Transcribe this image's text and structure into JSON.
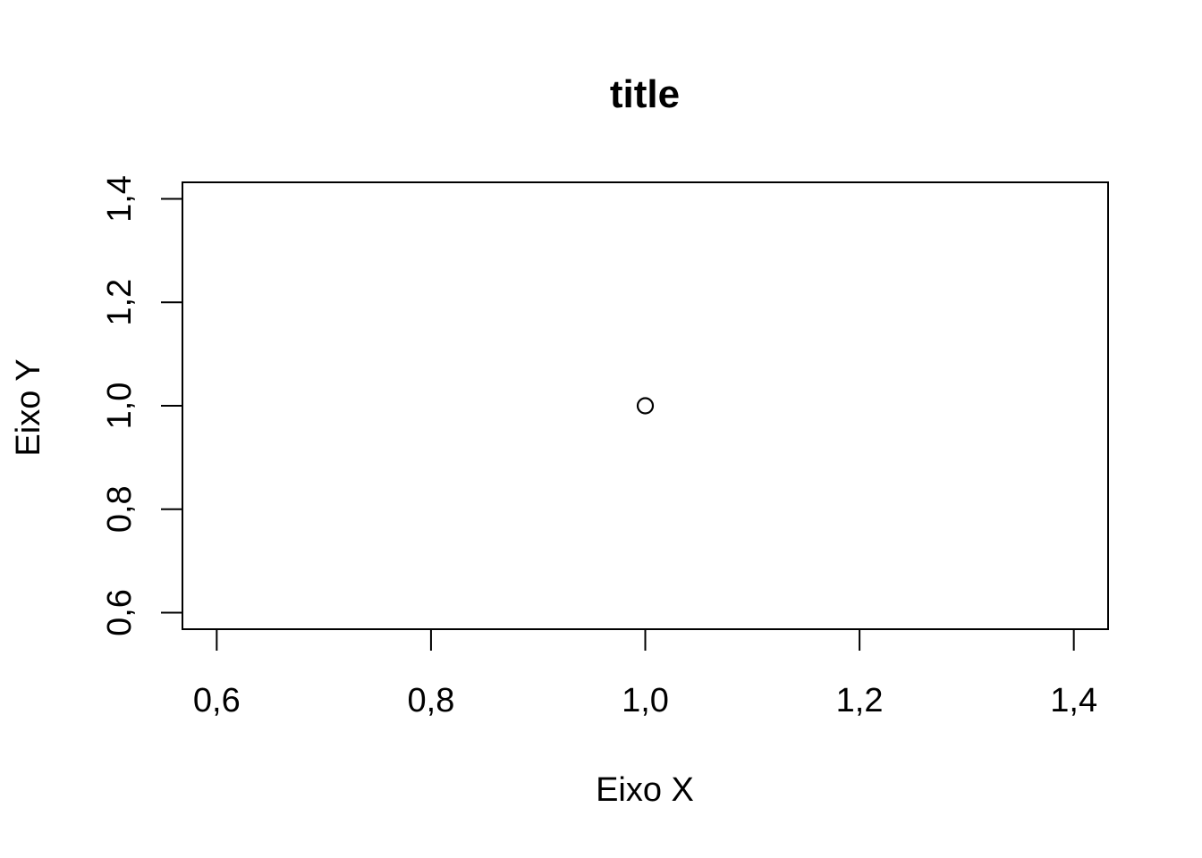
{
  "chart_data": {
    "type": "scatter",
    "title": "title",
    "xlabel": "Eixo X",
    "ylabel": "Eixo Y",
    "xlim": [
      0.568,
      1.432
    ],
    "ylim": [
      0.568,
      1.432
    ],
    "x_ticks": [
      0.6,
      0.8,
      1.0,
      1.2,
      1.4
    ],
    "x_tick_labels": [
      "0,6",
      "0,8",
      "1,0",
      "1,2",
      "1,4"
    ],
    "y_ticks": [
      0.6,
      0.8,
      1.0,
      1.2,
      1.4
    ],
    "y_tick_labels": [
      "0,6",
      "0,8",
      "1,0",
      "1,2",
      "1,4"
    ],
    "series": [
      {
        "x": [
          1.0
        ],
        "y": [
          1.0
        ]
      }
    ],
    "grid": false,
    "legend": "none",
    "colors": {
      "axis": "#000000",
      "point": "#000000",
      "background": "#ffffff"
    }
  }
}
